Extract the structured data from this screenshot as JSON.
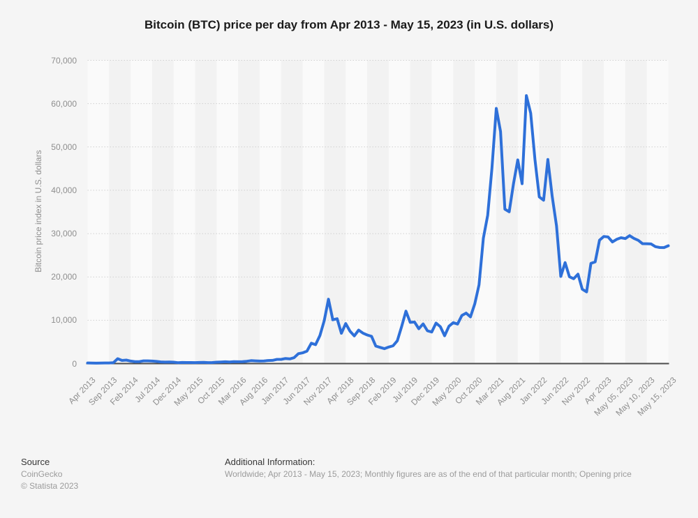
{
  "title": "Bitcoin (BTC) price per day from Apr 2013 - May 15, 2023 (in U.S. dollars)",
  "footer": {
    "source_label": "Source",
    "source_name": "CoinGecko",
    "copyright": "© Statista 2023",
    "additional_info_label": "Additional Information:",
    "additional_info": "Worldwide; Apr 2013 - May 15, 2023; Monthly figures are as of the end of that particular month; Opening price"
  },
  "colors": {
    "line": "#2e70d9",
    "band_light": "#fafafa",
    "band_dark": "#f2f2f2",
    "background": "#f5f5f5",
    "gridline": "#d0d0d0",
    "axis_line": "#4c4c4c",
    "axis_text": "#8e8e8e",
    "title_text": "#1a1a1a",
    "footer_label": "#363636",
    "footer_text": "#9b9b9b"
  },
  "chart_data": {
    "type": "line",
    "title": "Bitcoin (BTC) price per day from Apr 2013 - May 15, 2023 (in U.S. dollars)",
    "xlabel": "",
    "ylabel": "Bitcoin price index in U.S. dollars",
    "ylim": [
      0,
      70000
    ],
    "y_tick_step": 10000,
    "y_tick_labels": [
      "0",
      "10,000",
      "20,000",
      "30,000",
      "40,000",
      "50,000",
      "60,000",
      "70,000"
    ],
    "x_tick_interval": 5,
    "x_tick_labels": [
      "Apr 2013",
      "Sep 2013",
      "Feb 2014",
      "Jul 2014",
      "Dec 2014",
      "May 2015",
      "Oct 2015",
      "Mar 2016",
      "Aug 2016",
      "Jan 2017",
      "Jun 2017",
      "Nov 2017",
      "Apr 2018",
      "Sep 2018",
      "Feb 2019",
      "Jul 2019",
      "Dec 2019",
      "May 2020",
      "Oct 2020",
      "Mar 2021",
      "Aug 2021",
      "Jan 2022",
      "Jun 2022",
      "Nov 2022",
      "Apr 2023",
      "May 05, 2023",
      "May 10, 2023",
      "May 15, 2023"
    ],
    "grid": "horizontal-dotted",
    "legend": "none",
    "plot_bands": "alternating-vertical-every-5-points",
    "series": [
      {
        "name": "Bitcoin price index in U.S. dollars",
        "values": [
          139,
          129,
          97,
          106,
          141,
          141,
          204,
          1130,
          732,
          806,
          573,
          454,
          446,
          627,
          634,
          582,
          506,
          387,
          338,
          378,
          320,
          217,
          254,
          246,
          236,
          230,
          263,
          284,
          230,
          237,
          314,
          378,
          426,
          370,
          437,
          415,
          448,
          532,
          672,
          625,
          577,
          606,
          700,
          742,
          960,
          970,
          1180,
          1080,
          1350,
          2290,
          2480,
          2875,
          4700,
          4360,
          6450,
          9900,
          14850,
          10100,
          10340,
          7000,
          9240,
          7490,
          6390,
          7730,
          7030,
          6600,
          6300,
          4040,
          3740,
          3440,
          3810,
          4100,
          5270,
          8550,
          12100,
          9510,
          9590,
          8050,
          9150,
          7560,
          7290,
          9350,
          8520,
          6420,
          8620,
          9450,
          9130,
          11100,
          11650,
          10780,
          13790,
          18180,
          28950,
          34250,
          45100,
          58900,
          53570,
          35650,
          35040,
          41460,
          47010,
          41520,
          61850,
          57800,
          47120,
          38480,
          37710,
          47100,
          38600,
          31790,
          20110,
          23300,
          20050,
          19590,
          20630,
          17170,
          16540,
          23130,
          23480,
          28480,
          29340,
          29230,
          28080,
          28680,
          29040,
          28850,
          29530,
          28900,
          28450,
          27680,
          27660,
          27620,
          26980,
          26800,
          26780,
          27190
        ]
      }
    ]
  }
}
